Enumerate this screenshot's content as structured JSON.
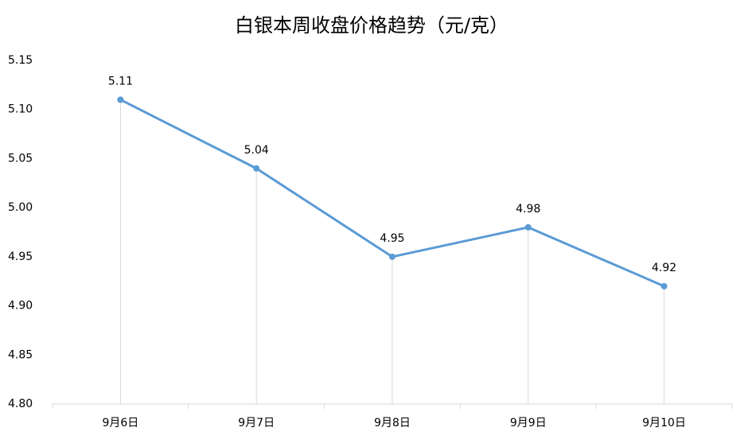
{
  "chart_data": {
    "type": "line",
    "title": "白银本周收盘价格趋势（元/克）",
    "categories": [
      "9月6日",
      "9月7日",
      "9月8日",
      "9月9日",
      "9月10日"
    ],
    "values": [
      5.11,
      5.04,
      4.95,
      4.98,
      4.92
    ],
    "color": "#5b9bd5",
    "ylim": [
      4.8,
      5.15
    ],
    "yticks": [
      {
        "value": 4.8,
        "label": "4.80"
      },
      4.85,
      {
        "value": 4.9,
        "label": "4.90"
      },
      4.95,
      {
        "value": 5.0,
        "label": "5.00"
      },
      5.05,
      {
        "value": 5.1,
        "label": "5.10"
      },
      5.15
    ],
    "drop_lines": true
  }
}
